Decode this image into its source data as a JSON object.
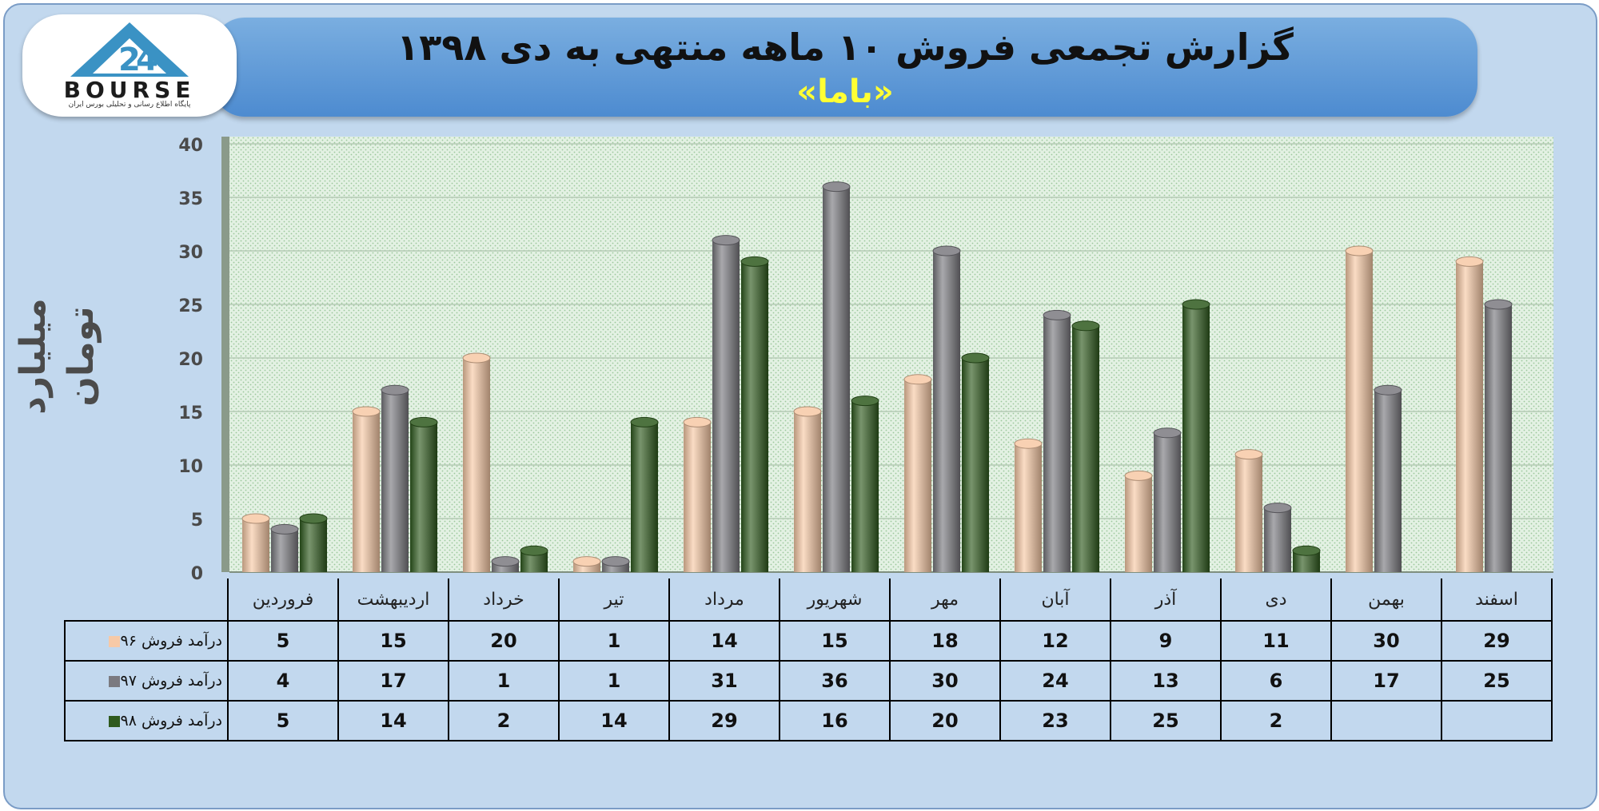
{
  "header": {
    "title": "گزارش تجمعی فروش ۱۰ ماهه منتهی به دی ۱۳۹۸",
    "subtitle": "«باما»"
  },
  "logo": {
    "wordmark": "BOURSE",
    "tagline": "پایگاه اطلاع رسانی و تحلیلی بورس ایران"
  },
  "chart_data": {
    "type": "bar",
    "ylabel": "میلیارد تومان",
    "ylim": [
      0,
      40
    ],
    "yticks": [
      0,
      5,
      10,
      15,
      20,
      25,
      30,
      35,
      40
    ],
    "grid": true,
    "categories": [
      "فروردین",
      "اردیبهشت",
      "خرداد",
      "تیر",
      "مرداد",
      "شهریور",
      "مهر",
      "آبان",
      "آذر",
      "دی",
      "بهمن",
      "اسفند"
    ],
    "series": [
      {
        "name": "درآمد فروش ۹۶",
        "color": "#f7c9a6",
        "values": [
          5,
          15,
          20,
          1,
          14,
          15,
          18,
          12,
          9,
          11,
          30,
          29
        ]
      },
      {
        "name": "درآمد فروش ۹۷",
        "color": "#7b7a80",
        "values": [
          4,
          17,
          1,
          1,
          31,
          36,
          30,
          24,
          13,
          6,
          17,
          25
        ]
      },
      {
        "name": "درآمد فروش ۹۸",
        "color": "#2f5a1e",
        "values": [
          5,
          14,
          2,
          14,
          29,
          16,
          20,
          23,
          25,
          2,
          null,
          null
        ]
      }
    ]
  }
}
